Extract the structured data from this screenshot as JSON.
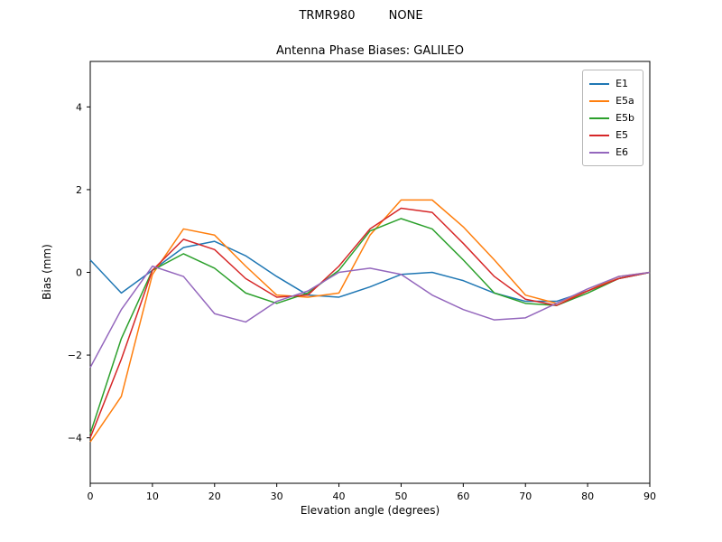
{
  "header": {
    "suptitle": "TRMR980         NONE",
    "title": "Antenna Phase Biases: GALILEO"
  },
  "axes": {
    "xlabel": "Elevation angle (degrees)",
    "ylabel": "Bias (mm)"
  },
  "chart_data": {
    "type": "line",
    "title": "Antenna Phase Biases: GALILEO",
    "xlabel": "Elevation angle (degrees)",
    "ylabel": "Bias (mm)",
    "xlim": [
      0,
      90
    ],
    "ylim": [
      -5.1,
      5.1
    ],
    "xticks": [
      0,
      10,
      20,
      30,
      40,
      50,
      60,
      70,
      80,
      90
    ],
    "yticks": [
      -4,
      -2,
      0,
      2,
      4
    ],
    "grid": false,
    "legend_position": "upper right",
    "x": [
      0,
      5,
      10,
      15,
      20,
      25,
      30,
      35,
      40,
      45,
      50,
      55,
      60,
      65,
      70,
      75,
      80,
      85,
      90
    ],
    "series": [
      {
        "name": "E1",
        "color": "#1f77b4",
        "values": [
          0.3,
          -0.5,
          0.05,
          0.6,
          0.75,
          0.4,
          -0.1,
          -0.55,
          -0.6,
          -0.35,
          -0.05,
          0.0,
          -0.2,
          -0.5,
          -0.7,
          -0.7,
          -0.45,
          -0.15,
          0.0
        ]
      },
      {
        "name": "E5a",
        "color": "#ff7f0e",
        "values": [
          -4.1,
          -3.0,
          -0.05,
          1.05,
          0.9,
          0.15,
          -0.55,
          -0.6,
          -0.5,
          0.9,
          1.75,
          1.75,
          1.1,
          0.3,
          -0.55,
          -0.75,
          -0.45,
          -0.1,
          0.0
        ]
      },
      {
        "name": "E5b",
        "color": "#2ca02c",
        "values": [
          -3.9,
          -1.6,
          0.05,
          0.45,
          0.1,
          -0.5,
          -0.75,
          -0.5,
          0.05,
          1.0,
          1.3,
          1.05,
          0.3,
          -0.5,
          -0.75,
          -0.8,
          -0.5,
          -0.15,
          0.0
        ]
      },
      {
        "name": "E5",
        "color": "#d62728",
        "values": [
          -4.0,
          -2.1,
          0.05,
          0.8,
          0.55,
          -0.15,
          -0.6,
          -0.55,
          0.15,
          1.05,
          1.55,
          1.45,
          0.7,
          -0.1,
          -0.65,
          -0.8,
          -0.45,
          -0.15,
          0.0
        ]
      },
      {
        "name": "E6",
        "color": "#9467bd",
        "values": [
          -2.3,
          -0.9,
          0.15,
          -0.1,
          -1.0,
          -1.2,
          -0.7,
          -0.45,
          0.0,
          0.1,
          -0.05,
          -0.55,
          -0.9,
          -1.15,
          -1.1,
          -0.75,
          -0.4,
          -0.1,
          0.0
        ]
      }
    ]
  }
}
